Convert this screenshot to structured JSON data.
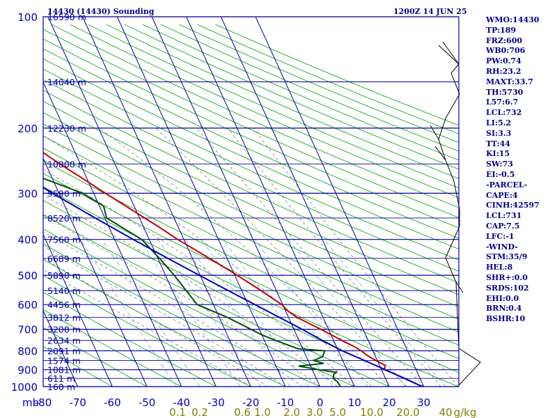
{
  "header": {
    "station": "14430 (14430) Sounding",
    "time": "1200Z 14 JUN 25"
  },
  "indices": [
    "WMO:14430",
    "TP:189",
    "FRZ:600",
    "WB0:706",
    "PW:0.74",
    "RH:23.2",
    "MAXT:33.7",
    "TH:5730",
    "L57:6.7",
    "LCL:732",
    "LI:5.2",
    "SI:3.3",
    "TT:44",
    "KI:15",
    "SW:73",
    "EI:-0.5",
    "-PARCEL-",
    "CAPE:4",
    "CINH:42597",
    "LCL:731",
    "CAP:7.5",
    "LFC:-1",
    "-WIND-",
    "STM:35/9",
    "HEL:8",
    "SHR+:0.0",
    "SRDS:102",
    "EHI:0.0",
    "BRN:0.4",
    "BSHR:10"
  ],
  "colors": {
    "frame": "#0000a0",
    "temperature": "#c00000",
    "dewpoint": "#005000",
    "parcel": "#0000c0",
    "dry_adiabat": "#00a000",
    "moist_adiabat": "#666666",
    "mixing_ratio": "#4aa0e0",
    "axis_text": "#0000c0",
    "mixratio_text": "#808000"
  },
  "chart_data": {
    "type": "line",
    "title": "",
    "xlabel": "",
    "ylabel": "mb",
    "x_unit": "°C",
    "y_scale": "log",
    "xlim": [
      -80,
      30
    ],
    "ylim": [
      1000,
      100
    ],
    "skew_note": "skew-T log-p diagram; isotherms skewed to the right",
    "pressure_ticks": [
      100,
      200,
      300,
      400,
      500,
      600,
      700,
      800,
      900,
      1000
    ],
    "pressure_tick_labels": [
      "100",
      "200",
      "300",
      "400",
      "500",
      "600",
      "700",
      "800",
      "900",
      "1000"
    ],
    "temperature_ticks": [
      -80,
      -70,
      -60,
      -50,
      -40,
      -30,
      -20,
      -10,
      0,
      10,
      20,
      30
    ],
    "temperature_tick_labels": [
      "-80",
      "-70",
      "-60",
      "-50",
      "-40",
      "-30",
      "-20",
      "-10",
      "0",
      "10",
      "20",
      "30"
    ],
    "axis_unit_label": "mb",
    "mixing_ratio_labels": [
      "0.1",
      "0.2",
      "0.6",
      "1.0",
      "2.0",
      "3.0",
      "5.0",
      "10.0",
      "20.0",
      "40",
      "g/kg"
    ],
    "height_levels": [
      {
        "p": 100,
        "label": "16590 m"
      },
      {
        "p": 150,
        "label": "14040 m"
      },
      {
        "p": 200,
        "label": "12230 m"
      },
      {
        "p": 250,
        "label": "10800 m"
      },
      {
        "p": 300,
        "label": "9590 m"
      },
      {
        "p": 350,
        "label": "8520 m"
      },
      {
        "p": 400,
        "label": "7560 m"
      },
      {
        "p": 450,
        "label": "6689 m"
      },
      {
        "p": 500,
        "label": "5890 m"
      },
      {
        "p": 550,
        "label": "5140 m"
      },
      {
        "p": 600,
        "label": "4456 m"
      },
      {
        "p": 650,
        "label": "3812 m"
      },
      {
        "p": 700,
        "label": "3208 m"
      },
      {
        "p": 750,
        "label": "2634 m"
      },
      {
        "p": 800,
        "label": "2091 m"
      },
      {
        "p": 850,
        "label": "1574 m"
      },
      {
        "p": 900,
        "label": "1081 m"
      },
      {
        "p": 950,
        "label": "611 m"
      },
      {
        "p": 1000,
        "label": "160 m"
      }
    ],
    "series": [
      {
        "name": "",
        "kind": "temperature",
        "points": [
          [
            1000,
            29.6
          ],
          [
            950,
            25.6
          ],
          [
            925,
            23.3
          ],
          [
            900,
            20.9
          ],
          [
            875,
            21.6
          ],
          [
            850,
            19.6
          ],
          [
            825,
            17.8
          ],
          [
            800,
            16.6
          ],
          [
            775,
            14.8
          ],
          [
            750,
            12.4
          ],
          [
            725,
            10.1
          ],
          [
            700,
            7.8
          ],
          [
            675,
            5.2
          ],
          [
            650,
            2.5
          ],
          [
            625,
            0.7
          ],
          [
            600,
            -0.3
          ],
          [
            575,
            -2.3
          ],
          [
            550,
            -4.4
          ],
          [
            525,
            -6.8
          ],
          [
            500,
            -9.3
          ],
          [
            475,
            -12.1
          ],
          [
            450,
            -15.1
          ],
          [
            425,
            -18.3
          ],
          [
            400,
            -21.8
          ],
          [
            375,
            -24.9
          ],
          [
            350,
            -28.5
          ],
          [
            325,
            -32.4
          ],
          [
            300,
            -36.6
          ],
          [
            275,
            -41.0
          ],
          [
            250,
            -45.9
          ],
          [
            225,
            -50.9
          ],
          [
            200,
            -55.8
          ],
          [
            185,
            -57.9
          ],
          [
            175,
            -57.5
          ],
          [
            165,
            -56.5
          ],
          [
            150,
            -55.2
          ],
          [
            140,
            -53.3
          ],
          [
            125,
            -53.8
          ],
          [
            115,
            -54.0
          ],
          [
            105,
            -57.0
          ],
          [
            100,
            -59.0
          ]
        ]
      },
      {
        "name": "",
        "kind": "dewpoint",
        "points": [
          [
            1000,
            5.9
          ],
          [
            970,
            5.7
          ],
          [
            950,
            4.9
          ],
          [
            925,
            5.6
          ],
          [
            915,
            6.6
          ],
          [
            900,
            1.9
          ],
          [
            880,
            -3.5
          ],
          [
            865,
            4.1
          ],
          [
            850,
            1.6
          ],
          [
            830,
            4.7
          ],
          [
            800,
            6.1
          ],
          [
            790,
            -1.4
          ],
          [
            750,
            -6.7
          ],
          [
            725,
            -10.0
          ],
          [
            700,
            -12.4
          ],
          [
            650,
            -17.6
          ],
          [
            600,
            -24.7
          ],
          [
            500,
            -27.5
          ],
          [
            450,
            -29.5
          ],
          [
            400,
            -32.2
          ],
          [
            350,
            -39.5
          ],
          [
            325,
            -38.8
          ],
          [
            300,
            -43.2
          ],
          [
            275,
            -52.0
          ],
          [
            250,
            -62.9
          ],
          [
            225,
            -72.0
          ],
          [
            210,
            -75.2
          ],
          [
            200,
            -80.2
          ]
        ]
      },
      {
        "name": "",
        "kind": "parcel",
        "points": [
          [
            1000,
            29.6
          ],
          [
            950,
            25.5
          ],
          [
            900,
            21.1
          ],
          [
            850,
            16.3
          ],
          [
            800,
            11.1
          ],
          [
            750,
            6.8
          ],
          [
            700,
            2.4
          ],
          [
            650,
            -2.6
          ],
          [
            600,
            -8.0
          ],
          [
            550,
            -13.9
          ],
          [
            500,
            -20.2
          ],
          [
            450,
            -27.1
          ],
          [
            400,
            -34.6
          ],
          [
            350,
            -42.8
          ],
          [
            300,
            -51.9
          ],
          [
            250,
            -62.0
          ],
          [
            200,
            -73.5
          ],
          [
            180,
            -78.6
          ]
        ]
      }
    ]
  }
}
